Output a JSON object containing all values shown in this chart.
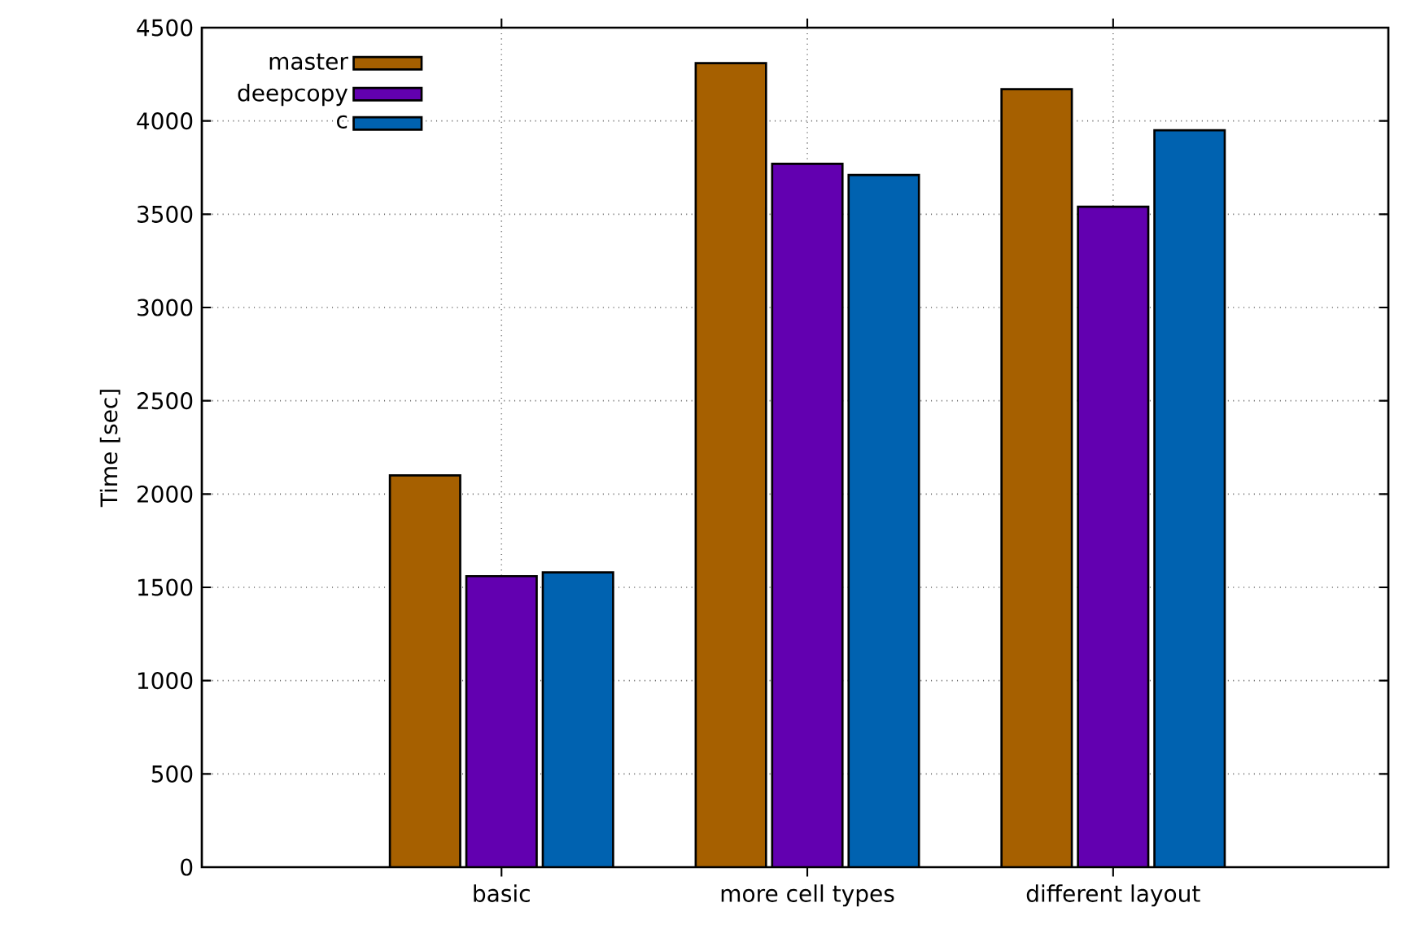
{
  "chart_data": {
    "type": "bar",
    "ylabel": "Time [sec]",
    "categories": [
      "basic",
      "more cell types",
      "different layout"
    ],
    "series": [
      {
        "name": "master",
        "color": "#a66000",
        "values": [
          2100,
          4310,
          4170
        ]
      },
      {
        "name": "deepcopy",
        "color": "#6200b0",
        "values": [
          1560,
          3770,
          3540
        ]
      },
      {
        "name": "c",
        "color": "#0062b0",
        "values": [
          1580,
          3710,
          3950
        ]
      }
    ],
    "ylim": [
      0,
      4500
    ],
    "yticks": [
      0,
      500,
      1000,
      1500,
      2000,
      2500,
      3000,
      3500,
      4000,
      4500
    ],
    "grid": true,
    "legend": "top left"
  }
}
